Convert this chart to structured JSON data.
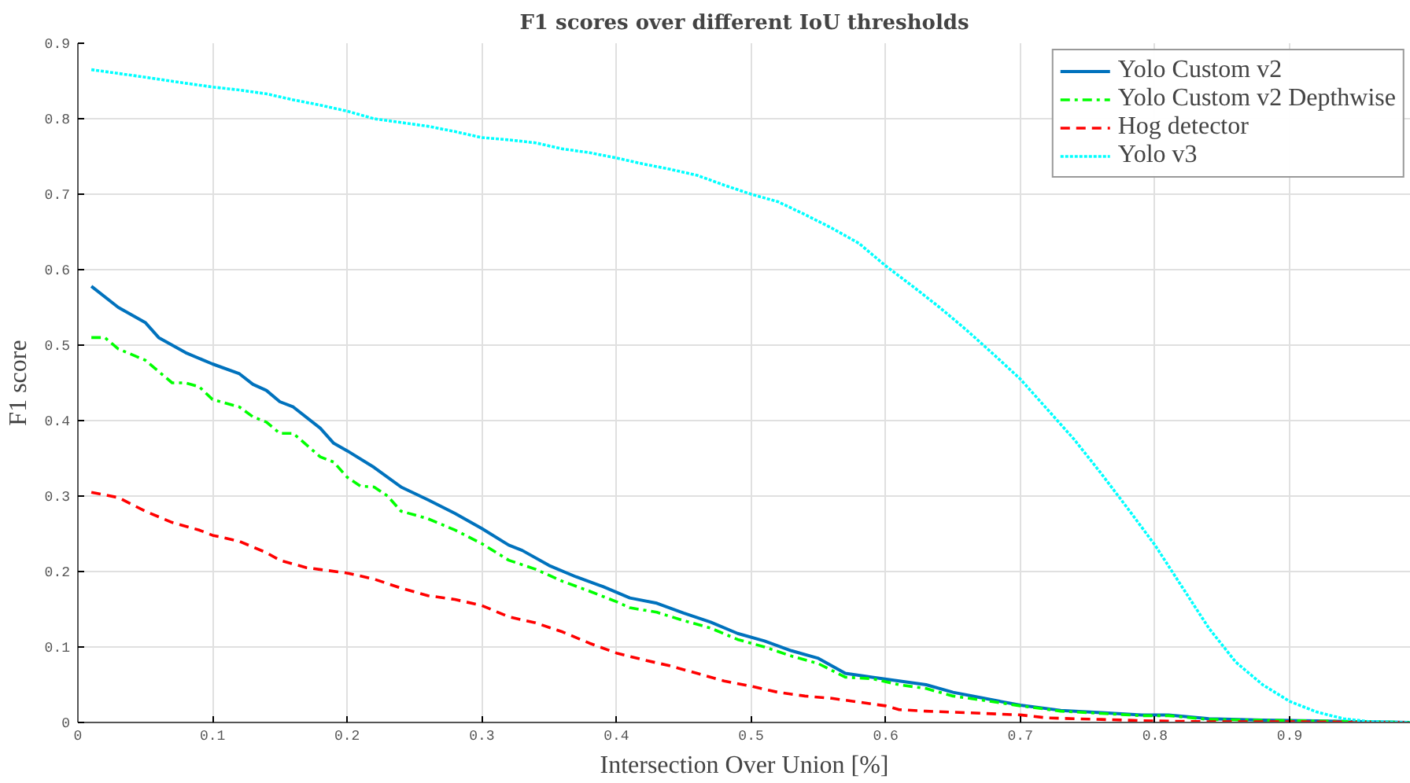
{
  "chart_data": {
    "type": "line",
    "title": "F1 scores over different IoU thresholds",
    "xlabel": "Intersection Over Union [%]",
    "ylabel": "F1 score",
    "xlim": [
      0,
      0.99
    ],
    "ylim": [
      0,
      0.9
    ],
    "xticks": [
      0,
      0.1,
      0.2,
      0.3,
      0.4,
      0.5,
      0.6,
      0.7,
      0.8,
      0.9
    ],
    "yticks": [
      0,
      0.1,
      0.2,
      0.3,
      0.4,
      0.5,
      0.6,
      0.7,
      0.8,
      0.9
    ],
    "grid": true,
    "legend": "top right",
    "marker": "none",
    "series": [
      {
        "name": "Yolo Custom v2",
        "color": "#0072bd",
        "line_style": "solid",
        "x": [
          0.01,
          0.03,
          0.05,
          0.06,
          0.08,
          0.1,
          0.12,
          0.13,
          0.14,
          0.15,
          0.16,
          0.18,
          0.19,
          0.2,
          0.22,
          0.24,
          0.26,
          0.28,
          0.3,
          0.32,
          0.33,
          0.35,
          0.37,
          0.39,
          0.41,
          0.43,
          0.45,
          0.47,
          0.49,
          0.51,
          0.53,
          0.55,
          0.57,
          0.59,
          0.61,
          0.63,
          0.65,
          0.67,
          0.7,
          0.73,
          0.76,
          0.79,
          0.81,
          0.84,
          0.88,
          0.92,
          0.95,
          0.99
        ],
        "values": [
          0.578,
          0.55,
          0.53,
          0.51,
          0.49,
          0.475,
          0.462,
          0.448,
          0.44,
          0.425,
          0.418,
          0.39,
          0.37,
          0.36,
          0.338,
          0.312,
          0.295,
          0.277,
          0.257,
          0.235,
          0.228,
          0.208,
          0.193,
          0.18,
          0.165,
          0.158,
          0.145,
          0.133,
          0.118,
          0.108,
          0.095,
          0.085,
          0.065,
          0.06,
          0.055,
          0.05,
          0.04,
          0.033,
          0.023,
          0.016,
          0.013,
          0.01,
          0.01,
          0.005,
          0.003,
          0.002,
          0.001,
          0
        ]
      },
      {
        "name": "Yolo Custom v2 Depthwise",
        "color": "#00ff00",
        "line_style": "dashdot",
        "x": [
          0.01,
          0.02,
          0.03,
          0.05,
          0.06,
          0.07,
          0.08,
          0.09,
          0.1,
          0.12,
          0.13,
          0.14,
          0.15,
          0.16,
          0.18,
          0.19,
          0.2,
          0.21,
          0.22,
          0.23,
          0.24,
          0.26,
          0.28,
          0.3,
          0.32,
          0.34,
          0.36,
          0.38,
          0.4,
          0.41,
          0.43,
          0.45,
          0.47,
          0.49,
          0.51,
          0.53,
          0.55,
          0.57,
          0.59,
          0.61,
          0.63,
          0.65,
          0.67,
          0.7,
          0.73,
          0.76,
          0.79,
          0.81,
          0.84,
          0.88,
          0.92,
          0.99
        ],
        "values": [
          0.51,
          0.51,
          0.495,
          0.48,
          0.465,
          0.45,
          0.45,
          0.445,
          0.428,
          0.418,
          0.405,
          0.398,
          0.383,
          0.383,
          0.352,
          0.345,
          0.325,
          0.313,
          0.312,
          0.3,
          0.28,
          0.27,
          0.255,
          0.237,
          0.215,
          0.203,
          0.187,
          0.174,
          0.16,
          0.152,
          0.146,
          0.135,
          0.125,
          0.11,
          0.1,
          0.088,
          0.078,
          0.06,
          0.058,
          0.05,
          0.045,
          0.035,
          0.03,
          0.022,
          0.015,
          0.012,
          0.009,
          0.009,
          0.004,
          0.003,
          0.002,
          0
        ]
      },
      {
        "name": "Hog detector",
        "color": "#ff0000",
        "line_style": "dashed",
        "x": [
          0.01,
          0.03,
          0.05,
          0.07,
          0.09,
          0.1,
          0.12,
          0.14,
          0.15,
          0.17,
          0.2,
          0.22,
          0.24,
          0.26,
          0.28,
          0.3,
          0.32,
          0.34,
          0.36,
          0.38,
          0.4,
          0.42,
          0.44,
          0.46,
          0.48,
          0.5,
          0.52,
          0.54,
          0.56,
          0.58,
          0.6,
          0.61,
          0.63,
          0.66,
          0.7,
          0.72,
          0.76,
          0.8,
          0.84,
          0.9,
          0.99
        ],
        "values": [
          0.305,
          0.298,
          0.28,
          0.265,
          0.255,
          0.248,
          0.24,
          0.225,
          0.215,
          0.205,
          0.198,
          0.19,
          0.178,
          0.168,
          0.163,
          0.155,
          0.14,
          0.132,
          0.12,
          0.105,
          0.092,
          0.083,
          0.075,
          0.065,
          0.055,
          0.048,
          0.04,
          0.035,
          0.032,
          0.027,
          0.022,
          0.017,
          0.015,
          0.013,
          0.01,
          0.006,
          0.004,
          0.002,
          0.001,
          0.001,
          0
        ]
      },
      {
        "name": "Yolo v3",
        "color": "#00ffff",
        "line_style": "dotted",
        "x": [
          0.01,
          0.05,
          0.08,
          0.1,
          0.12,
          0.14,
          0.16,
          0.18,
          0.2,
          0.22,
          0.24,
          0.26,
          0.28,
          0.3,
          0.32,
          0.34,
          0.36,
          0.38,
          0.4,
          0.42,
          0.44,
          0.46,
          0.48,
          0.5,
          0.52,
          0.54,
          0.56,
          0.58,
          0.6,
          0.62,
          0.64,
          0.66,
          0.68,
          0.7,
          0.72,
          0.74,
          0.76,
          0.78,
          0.8,
          0.82,
          0.84,
          0.86,
          0.88,
          0.9,
          0.92,
          0.94,
          0.96,
          0.99
        ],
        "values": [
          0.865,
          0.855,
          0.847,
          0.842,
          0.838,
          0.833,
          0.825,
          0.818,
          0.81,
          0.8,
          0.795,
          0.79,
          0.783,
          0.775,
          0.772,
          0.768,
          0.76,
          0.755,
          0.748,
          0.74,
          0.733,
          0.725,
          0.712,
          0.7,
          0.69,
          0.673,
          0.655,
          0.635,
          0.605,
          0.578,
          0.55,
          0.52,
          0.488,
          0.455,
          0.415,
          0.375,
          0.33,
          0.283,
          0.235,
          0.18,
          0.125,
          0.08,
          0.05,
          0.028,
          0.014,
          0.005,
          0.001,
          0
        ]
      }
    ]
  }
}
